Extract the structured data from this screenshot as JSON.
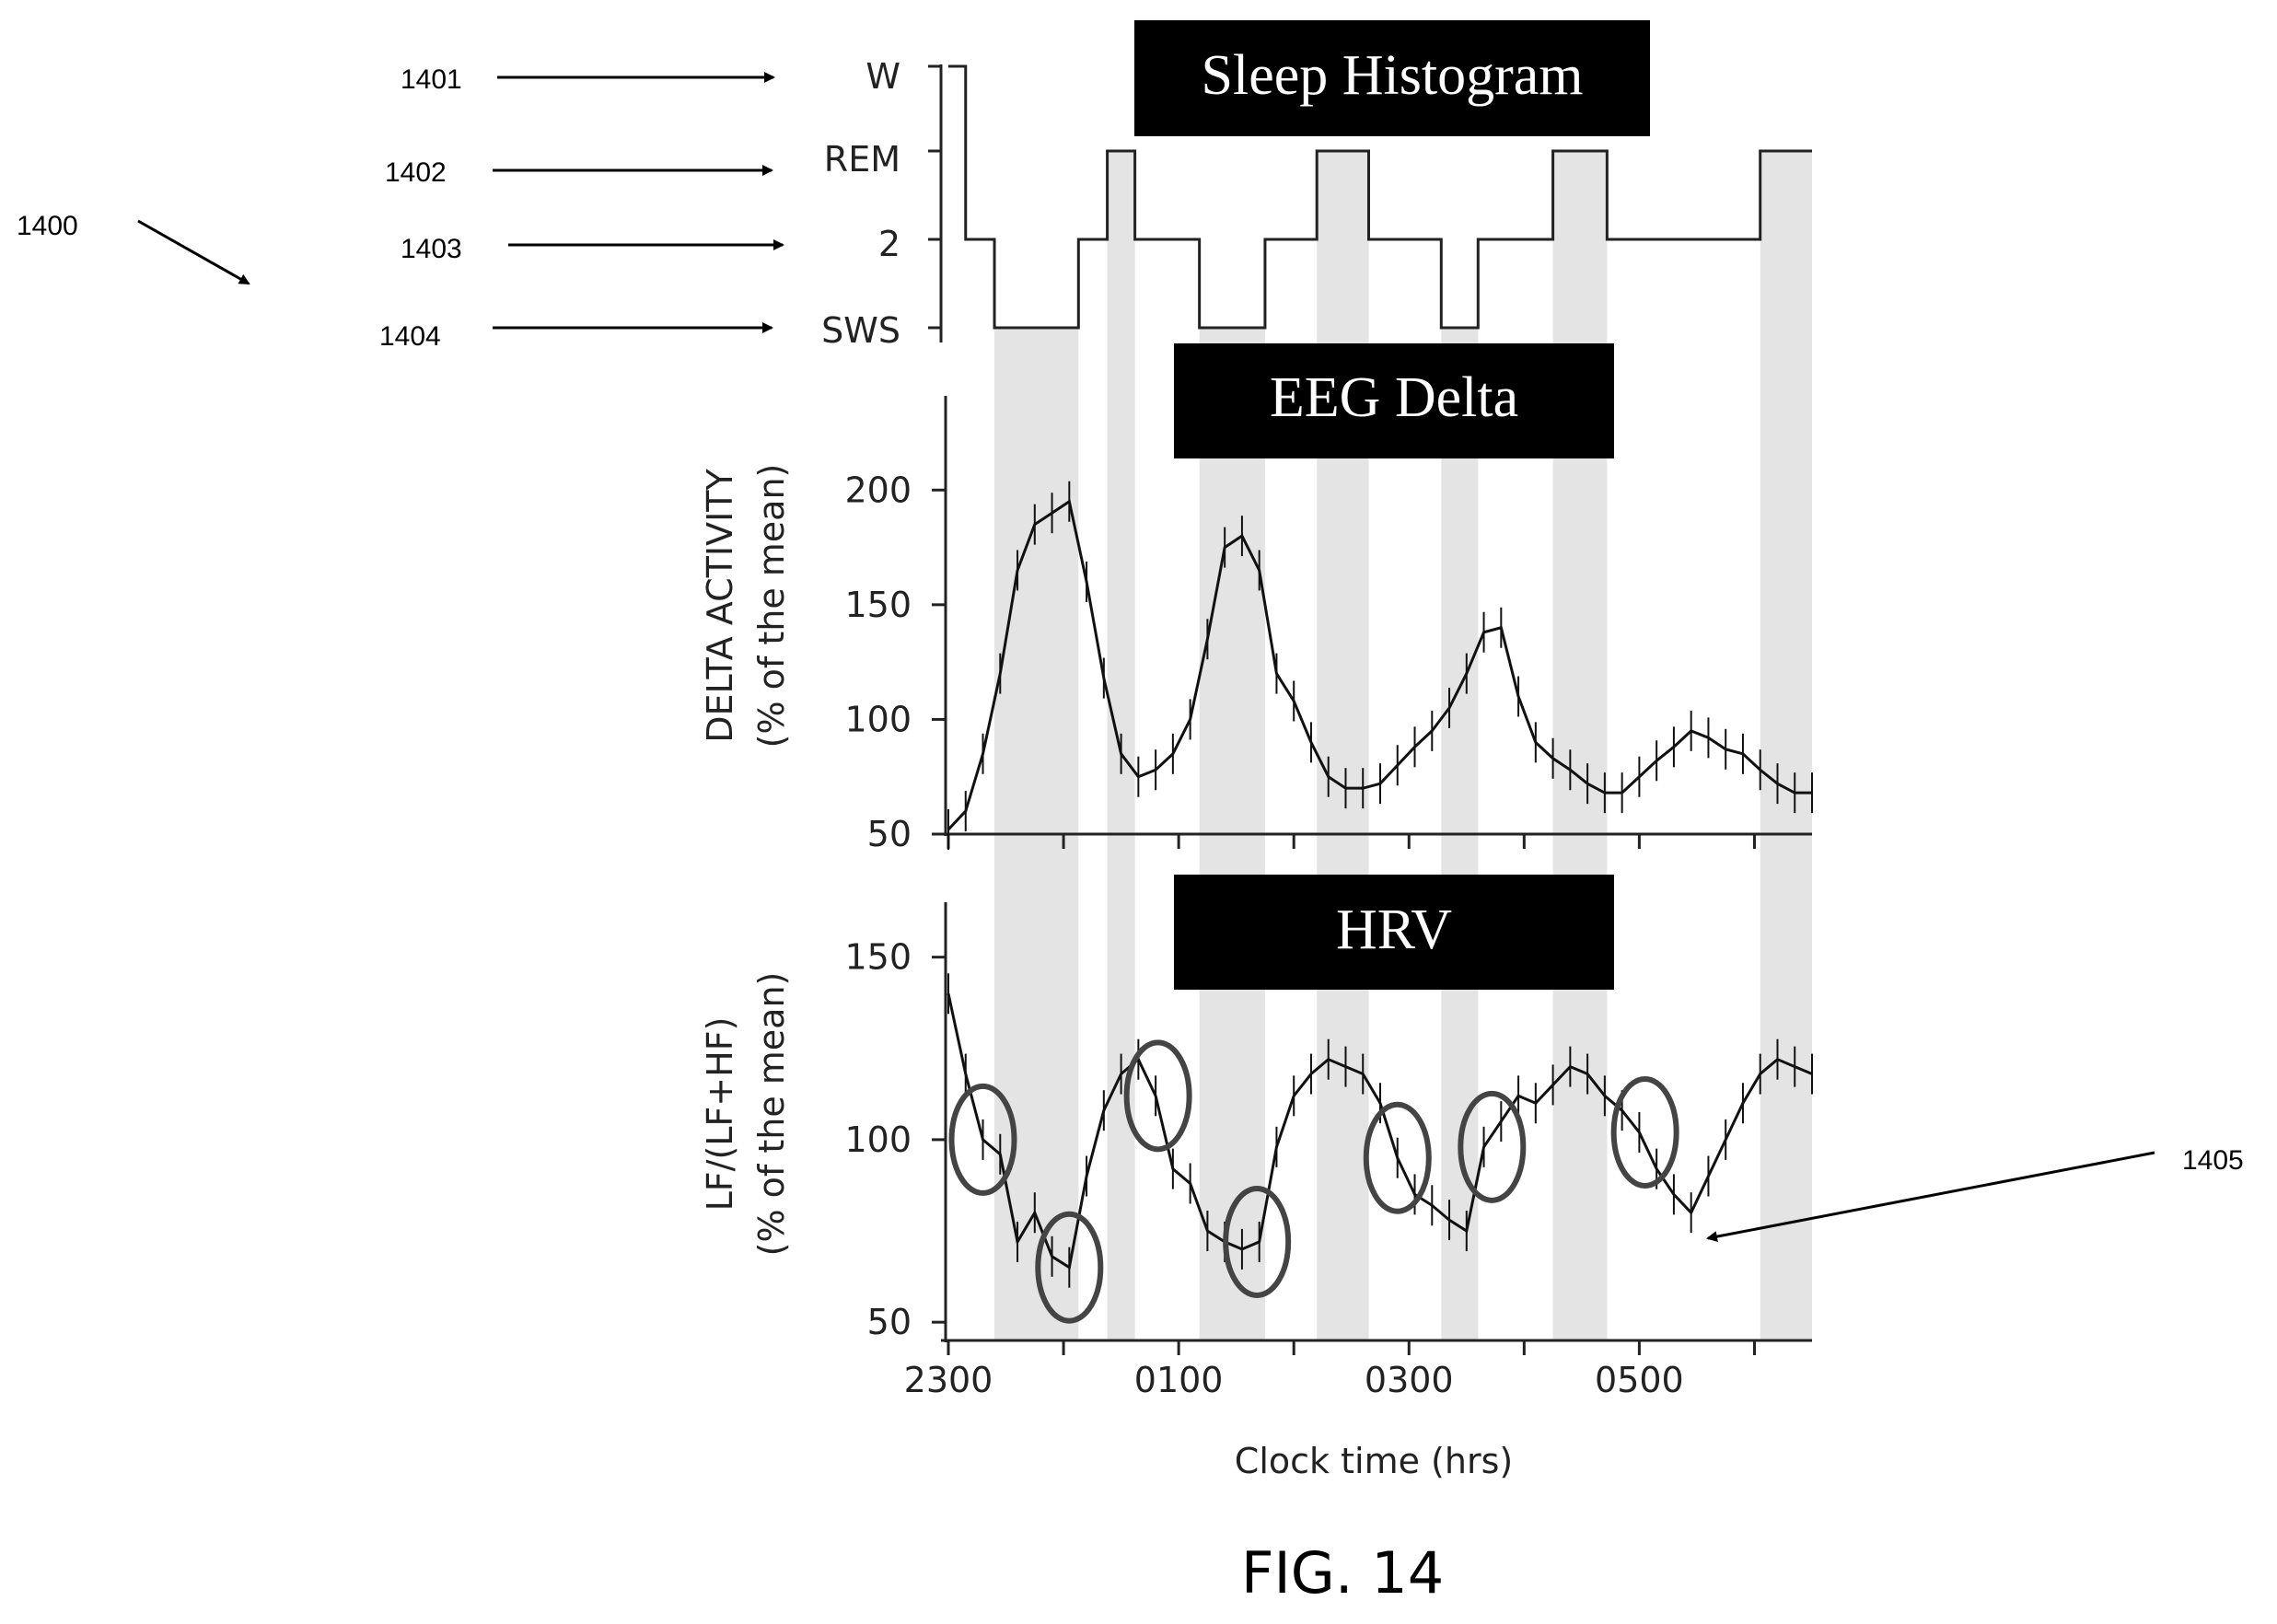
{
  "figure_label": "FIG. 14",
  "refs": {
    "r1400": "1400",
    "r1401": "1401",
    "r1402": "1402",
    "r1403": "1403",
    "r1404": "1404",
    "r1405": "1405"
  },
  "chart_data": [
    {
      "type": "line",
      "title": "Sleep Histogram",
      "stages": [
        "W",
        "REM",
        "2",
        "SWS"
      ],
      "x_range_hours_after_2300": [
        0,
        7.5
      ],
      "step_series": [
        {
          "t": 0.0,
          "stage": "W"
        },
        {
          "t": 0.15,
          "stage": "2"
        },
        {
          "t": 0.4,
          "stage": "SWS"
        },
        {
          "t": 1.13,
          "stage": "2"
        },
        {
          "t": 1.38,
          "stage": "REM"
        },
        {
          "t": 1.62,
          "stage": "2"
        },
        {
          "t": 2.18,
          "stage": "SWS"
        },
        {
          "t": 2.75,
          "stage": "2"
        },
        {
          "t": 3.2,
          "stage": "REM"
        },
        {
          "t": 3.65,
          "stage": "2"
        },
        {
          "t": 4.28,
          "stage": "SWS"
        },
        {
          "t": 4.6,
          "stage": "2"
        },
        {
          "t": 5.25,
          "stage": "REM"
        },
        {
          "t": 5.72,
          "stage": "2"
        },
        {
          "t": 7.05,
          "stage": "REM"
        },
        {
          "t": 7.5,
          "stage": "REM"
        }
      ]
    },
    {
      "type": "line",
      "title": "EEG Delta",
      "ylabel": [
        "DELTA  ACTIVITY",
        "(% of the mean)"
      ],
      "yticks": [
        50,
        100,
        150,
        200
      ],
      "ylim": [
        50,
        225
      ],
      "x": [
        0,
        0.15,
        0.3,
        0.45,
        0.6,
        0.75,
        0.9,
        1.05,
        1.2,
        1.35,
        1.5,
        1.65,
        1.8,
        1.95,
        2.1,
        2.25,
        2.4,
        2.55,
        2.7,
        2.85,
        3.0,
        3.15,
        3.3,
        3.45,
        3.6,
        3.75,
        3.9,
        4.05,
        4.2,
        4.35,
        4.5,
        4.65,
        4.8,
        4.95,
        5.1,
        5.25,
        5.4,
        5.55,
        5.7,
        5.85,
        6.0,
        6.15,
        6.3,
        6.45,
        6.6,
        6.75,
        6.9,
        7.05,
        7.2,
        7.35,
        7.5
      ],
      "y": [
        52,
        60,
        85,
        120,
        165,
        185,
        190,
        195,
        160,
        118,
        85,
        75,
        78,
        85,
        100,
        135,
        175,
        180,
        165,
        120,
        108,
        90,
        75,
        70,
        70,
        72,
        80,
        88,
        95,
        105,
        120,
        138,
        140,
        110,
        90,
        83,
        78,
        72,
        68,
        68,
        75,
        82,
        88,
        95,
        92,
        87,
        85,
        78,
        72,
        68,
        68
      ]
    },
    {
      "type": "line",
      "title": "HRV",
      "ylabel": [
        "LF/(LF+HF)",
        "(% of the mean)"
      ],
      "yticks": [
        50,
        100,
        150
      ],
      "ylim": [
        45,
        160
      ],
      "x": [
        0,
        0.15,
        0.3,
        0.45,
        0.6,
        0.75,
        0.9,
        1.05,
        1.2,
        1.35,
        1.5,
        1.65,
        1.8,
        1.95,
        2.1,
        2.25,
        2.4,
        2.55,
        2.7,
        2.85,
        3.0,
        3.15,
        3.3,
        3.45,
        3.6,
        3.75,
        3.9,
        4.05,
        4.2,
        4.35,
        4.5,
        4.65,
        4.8,
        4.95,
        5.1,
        5.25,
        5.4,
        5.55,
        5.7,
        5.85,
        6.0,
        6.15,
        6.3,
        6.45,
        6.6,
        6.75,
        6.9,
        7.05,
        7.2,
        7.35,
        7.5
      ],
      "y": [
        140,
        118,
        100,
        96,
        72,
        80,
        68,
        65,
        90,
        108,
        118,
        122,
        112,
        92,
        88,
        75,
        72,
        70,
        72,
        98,
        112,
        118,
        122,
        120,
        118,
        110,
        95,
        85,
        82,
        78,
        75,
        98,
        105,
        112,
        110,
        115,
        120,
        118,
        112,
        108,
        102,
        92,
        85,
        80,
        90,
        100,
        110,
        118,
        122,
        120,
        118
      ],
      "circled_x": [
        0.3,
        1.05,
        1.82,
        2.68,
        3.9,
        4.72,
        6.05
      ]
    }
  ],
  "x_axis": {
    "label": "Clock time (hrs)",
    "ticks": [
      {
        "t": 0,
        "label": "2300"
      },
      {
        "t": 2,
        "label": "0100"
      },
      {
        "t": 4,
        "label": "0300"
      },
      {
        "t": 6,
        "label": "0500"
      }
    ]
  }
}
